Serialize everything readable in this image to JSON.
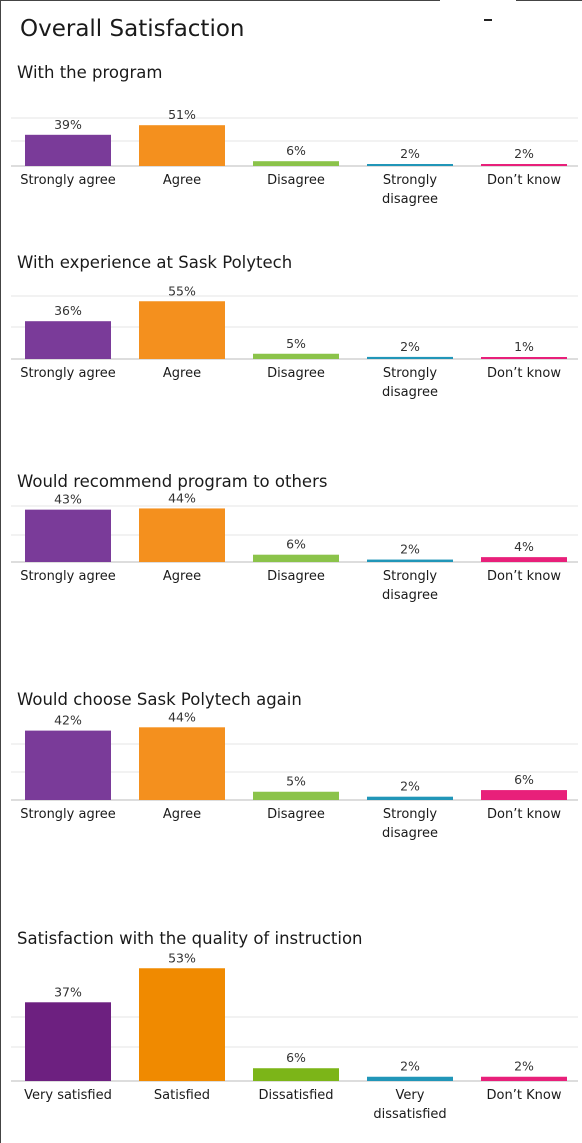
{
  "page": {
    "title": "Overall Satisfaction",
    "colors": {
      "strongly_agree": "#7a3b99",
      "agree": "#f4901e",
      "disagree": "#8bc34a",
      "strongly_disagree": "#2196b8",
      "dont_know": "#e8207a",
      "very_satisfied": "#6d2080",
      "satisfied": "#f08a00",
      "dissatisfied": "#7cb518",
      "gridline": "#e6e6e6",
      "axis": "#bbbbbb"
    }
  },
  "chart_data": [
    {
      "type": "bar",
      "title": "With the program",
      "categories": [
        "Strongly agree",
        "Agree",
        "Disagree",
        "Strongly disagree",
        "Don’t know"
      ],
      "category_lines": [
        [
          "Strongly agree"
        ],
        [
          "Agree"
        ],
        [
          "Disagree"
        ],
        [
          "Strongly",
          "disagree"
        ],
        [
          "Don’t know"
        ]
      ],
      "values": [
        39,
        51,
        6,
        2,
        2
      ],
      "value_labels": [
        "39%",
        "51%",
        "6%",
        "2%",
        "2%"
      ],
      "colors": [
        "#7a3b99",
        "#f4901e",
        "#8bc34a",
        "#2196b8",
        "#e8207a"
      ],
      "ylim": [
        0,
        60
      ],
      "grid": true
    },
    {
      "type": "bar",
      "title": "With experience at Sask Polytech",
      "categories": [
        "Strongly agree",
        "Agree",
        "Disagree",
        "Strongly disagree",
        "Don’t know"
      ],
      "category_lines": [
        [
          "Strongly agree"
        ],
        [
          "Agree"
        ],
        [
          "Disagree"
        ],
        [
          "Strongly",
          "disagree"
        ],
        [
          "Don’t know"
        ]
      ],
      "values": [
        36,
        55,
        5,
        2,
        1
      ],
      "value_labels": [
        "36%",
        "55%",
        "5%",
        "2%",
        "1%"
      ],
      "colors": [
        "#7a3b99",
        "#f4901e",
        "#8bc34a",
        "#2196b8",
        "#e8207a"
      ],
      "ylim": [
        0,
        60
      ],
      "grid": true
    },
    {
      "type": "bar",
      "title": "Would recommend program to others",
      "categories": [
        "Strongly agree",
        "Agree",
        "Disagree",
        "Strongly disagree",
        "Don’t know"
      ],
      "category_lines": [
        [
          "Strongly agree"
        ],
        [
          "Agree"
        ],
        [
          "Disagree"
        ],
        [
          "Strongly",
          "disagree"
        ],
        [
          "Don’t know"
        ]
      ],
      "values": [
        43,
        44,
        6,
        2,
        4
      ],
      "value_labels": [
        "43%",
        "44%",
        "6%",
        "2%",
        "4%"
      ],
      "colors": [
        "#7a3b99",
        "#f4901e",
        "#8bc34a",
        "#2196b8",
        "#e8207a"
      ],
      "ylim": [
        0,
        46
      ],
      "grid": true
    },
    {
      "type": "bar",
      "title": "Would choose Sask Polytech again",
      "categories": [
        "Strongly agree",
        "Agree",
        "Disagree",
        "Strongly disagree",
        "Don’t know"
      ],
      "category_lines": [
        [
          "Strongly agree"
        ],
        [
          "Agree"
        ],
        [
          "Disagree"
        ],
        [
          "Strongly",
          "disagree"
        ],
        [
          "Don’t know"
        ]
      ],
      "values": [
        42,
        44,
        5,
        2,
        6
      ],
      "value_labels": [
        "42%",
        "44%",
        "5%",
        "2%",
        "6%"
      ],
      "colors": [
        "#7a3b99",
        "#f4901e",
        "#8bc34a",
        "#2196b8",
        "#e8207a"
      ],
      "ylim": [
        0,
        46
      ],
      "grid": true
    },
    {
      "type": "bar",
      "title": "Satisfaction with the quality of instruction",
      "categories": [
        "Very satisfied",
        "Satisfied",
        "Dissatisfied",
        "Very dissatisfied",
        "Don’t Know"
      ],
      "category_lines": [
        [
          "Very satisfied"
        ],
        [
          "Satisfied"
        ],
        [
          "Dissatisfied"
        ],
        [
          "Very",
          "dissatisfied"
        ],
        [
          "Don’t Know"
        ]
      ],
      "values": [
        37,
        53,
        6,
        2,
        2
      ],
      "value_labels": [
        "37%",
        "53%",
        "6%",
        "2%",
        "2%"
      ],
      "colors": [
        "#6d2080",
        "#f08a00",
        "#7cb518",
        "#2196b8",
        "#e8207a"
      ],
      "ylim": [
        0,
        55
      ],
      "grid": true
    }
  ]
}
